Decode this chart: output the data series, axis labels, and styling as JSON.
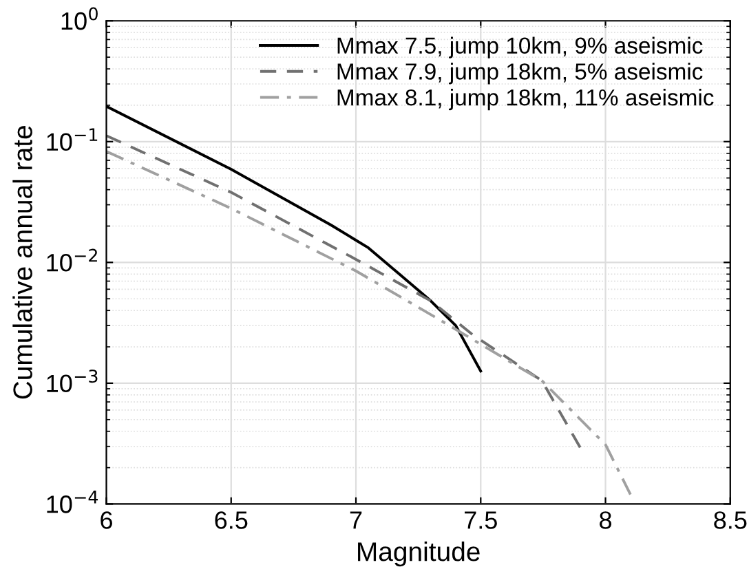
{
  "chart_data": {
    "type": "line",
    "xlabel": "Magnitude",
    "ylabel": "Cumulative annual rate",
    "log": "y",
    "grid": true,
    "legend": "top right",
    "xlim": [
      6,
      8.5
    ],
    "xticks": [
      6,
      6.5,
      7,
      7.5,
      8,
      8.5
    ],
    "ylim": [
      0.0001,
      1
    ],
    "yticks": [
      {
        "value": 0.0001,
        "label": "10$^{−4}$"
      },
      {
        "value": 0.001,
        "label": "10$^{−3}$"
      },
      {
        "value": 0.01,
        "label": "10$^{−2}$"
      },
      {
        "value": 0.1,
        "label": "10$^{−1}$"
      },
      {
        "value": 1,
        "label": "10$^{0}$"
      }
    ],
    "series": [
      {
        "name": "Mmax 7.5, jump 10km, 9% aseismic",
        "color": "#000000",
        "line_style": "solid",
        "x": [
          6.0,
          6.5,
          6.9,
          7.05,
          7.19,
          7.3,
          7.4,
          7.5
        ],
        "values": [
          0.196,
          0.059,
          0.0204,
          0.0132,
          0.0075,
          0.0048,
          0.003,
          0.00126
        ]
      },
      {
        "name": "Mmax 7.9, jump 18km, 5% aseismic",
        "color": "#707070",
        "line_style": "dashed",
        "x": [
          6.0,
          6.5,
          7.0,
          7.3,
          7.47,
          7.745,
          7.9
        ],
        "values": [
          0.112,
          0.038,
          0.0106,
          0.0048,
          0.0025,
          0.00105,
          0.00029
        ]
      },
      {
        "name": "Mmax 8.1, jump 18km, 11% aseismic",
        "color": "#a0a0a0",
        "line_style": "dashdot",
        "x": [
          6.0,
          6.5,
          7.0,
          7.32,
          7.745,
          8.0,
          8.1
        ],
        "values": [
          0.083,
          0.028,
          0.0085,
          0.0035,
          0.00105,
          0.00031,
          0.00012
        ]
      }
    ]
  }
}
